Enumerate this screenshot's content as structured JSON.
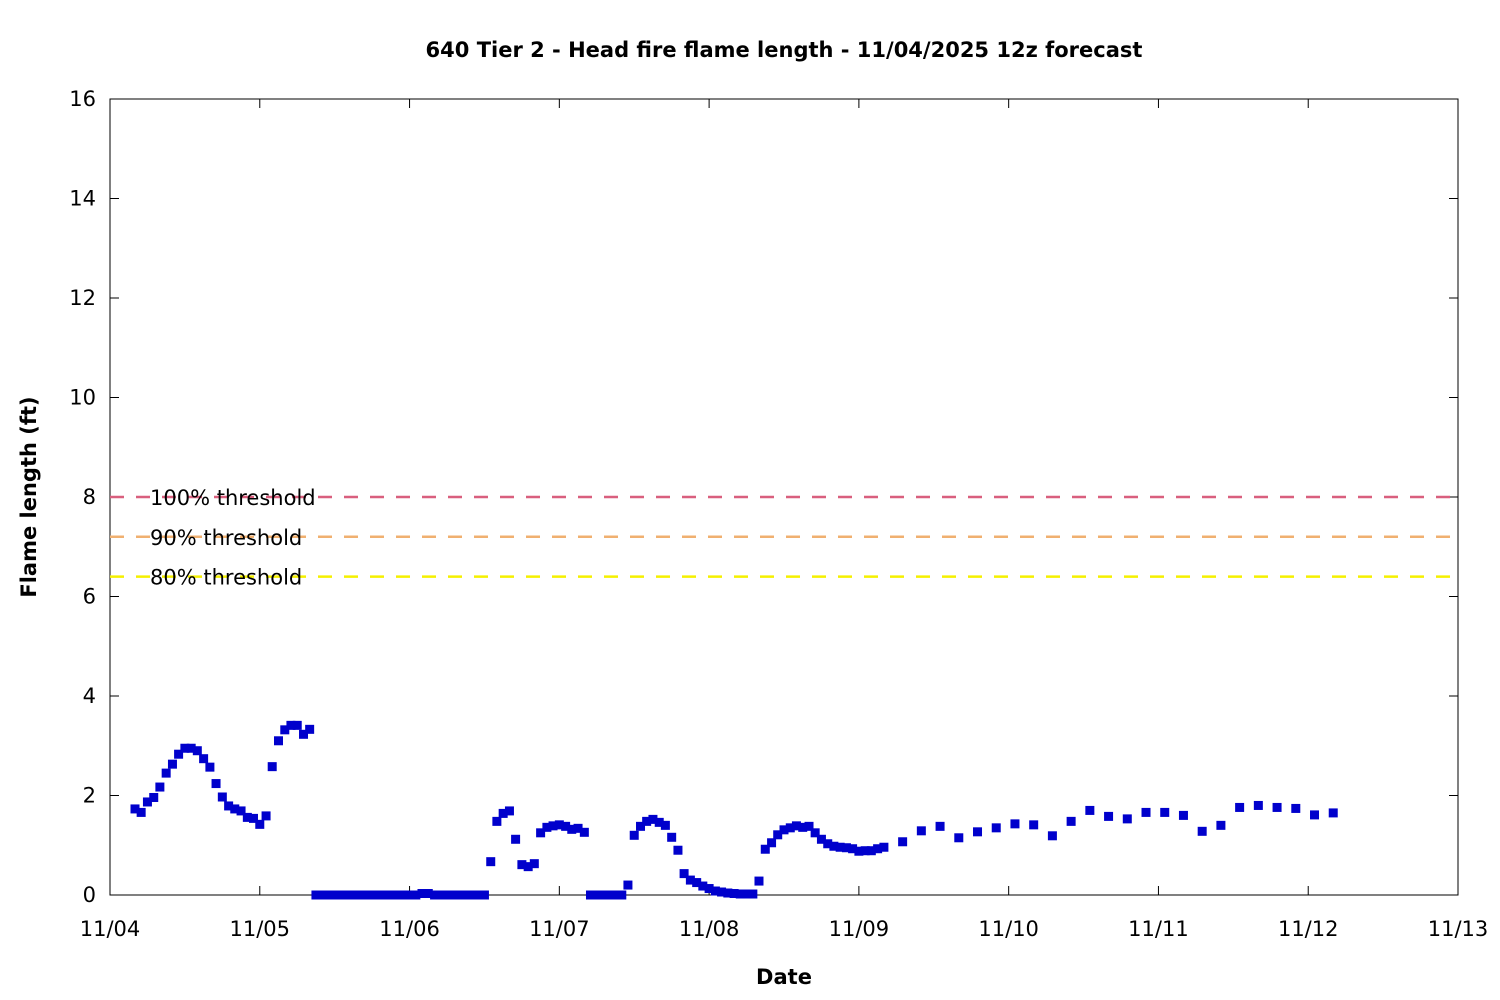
{
  "chart_data": {
    "type": "scatter",
    "title": "640 Tier 2 - Head fire flame length - 11/04/2025 12z forecast",
    "xlabel": "Date",
    "ylabel": "Flame length (ft)",
    "x_ticks": [
      "11/04",
      "11/05",
      "11/06",
      "11/07",
      "11/08",
      "11/09",
      "11/10",
      "11/11",
      "11/12",
      "11/13"
    ],
    "xlim_days": [
      0,
      9
    ],
    "ylim": [
      0,
      16
    ],
    "y_ticks": [
      0,
      2,
      4,
      6,
      8,
      10,
      12,
      14,
      16
    ],
    "grid": false,
    "marker_color": "#0000cc",
    "thresholds": [
      {
        "label": "100% threshold",
        "value": 8.0,
        "color": "#d95f7e"
      },
      {
        "label": "90% threshold",
        "value": 7.2,
        "color": "#f0b070"
      },
      {
        "label": "80% threshold",
        "value": 6.4,
        "color": "#f5f000"
      }
    ],
    "series": [
      {
        "points": [
          [
            0.167,
            1.73
          ],
          [
            0.208,
            1.66
          ],
          [
            0.25,
            1.87
          ],
          [
            0.292,
            1.96
          ],
          [
            0.333,
            2.17
          ],
          [
            0.375,
            2.45
          ],
          [
            0.417,
            2.63
          ],
          [
            0.458,
            2.83
          ],
          [
            0.5,
            2.95
          ],
          [
            0.542,
            2.95
          ],
          [
            0.583,
            2.9
          ],
          [
            0.625,
            2.74
          ],
          [
            0.667,
            2.57
          ],
          [
            0.708,
            2.24
          ],
          [
            0.75,
            1.97
          ],
          [
            0.792,
            1.79
          ],
          [
            0.833,
            1.73
          ],
          [
            0.875,
            1.69
          ],
          [
            0.917,
            1.56
          ],
          [
            0.958,
            1.54
          ],
          [
            1.0,
            1.42
          ],
          [
            1.042,
            1.59
          ],
          [
            1.083,
            2.58
          ],
          [
            1.125,
            3.1
          ],
          [
            1.167,
            3.32
          ],
          [
            1.208,
            3.41
          ],
          [
            1.25,
            3.41
          ],
          [
            1.292,
            3.23
          ],
          [
            1.333,
            3.33
          ],
          [
            1.375,
            0
          ],
          [
            1.417,
            0
          ],
          [
            1.458,
            0
          ],
          [
            1.5,
            0
          ],
          [
            1.542,
            0
          ],
          [
            1.583,
            0
          ],
          [
            1.625,
            0
          ],
          [
            1.667,
            0
          ],
          [
            1.708,
            0
          ],
          [
            1.75,
            0
          ],
          [
            1.792,
            0
          ],
          [
            1.833,
            0
          ],
          [
            1.875,
            0
          ],
          [
            1.917,
            0
          ],
          [
            1.958,
            0
          ],
          [
            2.0,
            0
          ],
          [
            2.042,
            0
          ],
          [
            2.083,
            0.03
          ],
          [
            2.125,
            0.03
          ],
          [
            2.167,
            0
          ],
          [
            2.208,
            0
          ],
          [
            2.25,
            0
          ],
          [
            2.292,
            0
          ],
          [
            2.333,
            0
          ],
          [
            2.375,
            0
          ],
          [
            2.417,
            0
          ],
          [
            2.458,
            0
          ],
          [
            2.5,
            0
          ],
          [
            2.542,
            0.67
          ],
          [
            2.583,
            1.48
          ],
          [
            2.625,
            1.64
          ],
          [
            2.667,
            1.69
          ],
          [
            2.708,
            1.12
          ],
          [
            2.75,
            0.61
          ],
          [
            2.792,
            0.57
          ],
          [
            2.833,
            0.63
          ],
          [
            2.875,
            1.25
          ],
          [
            2.917,
            1.36
          ],
          [
            2.958,
            1.39
          ],
          [
            3.0,
            1.41
          ],
          [
            3.042,
            1.38
          ],
          [
            3.083,
            1.32
          ],
          [
            3.125,
            1.34
          ],
          [
            3.167,
            1.26
          ],
          [
            3.208,
            0
          ],
          [
            3.25,
            0
          ],
          [
            3.292,
            0
          ],
          [
            3.333,
            0
          ],
          [
            3.375,
            0
          ],
          [
            3.417,
            0
          ],
          [
            3.458,
            0.2
          ],
          [
            3.5,
            1.2
          ],
          [
            3.542,
            1.38
          ],
          [
            3.583,
            1.48
          ],
          [
            3.625,
            1.52
          ],
          [
            3.667,
            1.46
          ],
          [
            3.708,
            1.4
          ],
          [
            3.75,
            1.16
          ],
          [
            3.792,
            0.9
          ],
          [
            3.833,
            0.43
          ],
          [
            3.875,
            0.3
          ],
          [
            3.917,
            0.25
          ],
          [
            3.958,
            0.18
          ],
          [
            4.0,
            0.13
          ],
          [
            4.042,
            0.08
          ],
          [
            4.083,
            0.06
          ],
          [
            4.125,
            0.04
          ],
          [
            4.167,
            0.03
          ],
          [
            4.208,
            0.02
          ],
          [
            4.25,
            0.02
          ],
          [
            4.292,
            0.02
          ],
          [
            4.333,
            0.28
          ],
          [
            4.375,
            0.92
          ],
          [
            4.417,
            1.05
          ],
          [
            4.458,
            1.21
          ],
          [
            4.5,
            1.31
          ],
          [
            4.542,
            1.35
          ],
          [
            4.583,
            1.39
          ],
          [
            4.625,
            1.36
          ],
          [
            4.667,
            1.38
          ],
          [
            4.708,
            1.25
          ],
          [
            4.75,
            1.12
          ],
          [
            4.792,
            1.03
          ],
          [
            4.833,
            0.98
          ],
          [
            4.875,
            0.96
          ],
          [
            4.917,
            0.95
          ],
          [
            4.958,
            0.93
          ],
          [
            5.0,
            0.88
          ],
          [
            5.042,
            0.89
          ],
          [
            5.083,
            0.89
          ],
          [
            5.125,
            0.93
          ],
          [
            5.167,
            0.96
          ],
          [
            5.292,
            1.07
          ],
          [
            5.417,
            1.29
          ],
          [
            5.542,
            1.38
          ],
          [
            5.667,
            1.15
          ],
          [
            5.792,
            1.27
          ],
          [
            5.917,
            1.35
          ],
          [
            6.042,
            1.43
          ],
          [
            6.167,
            1.41
          ],
          [
            6.292,
            1.19
          ],
          [
            6.417,
            1.48
          ],
          [
            6.542,
            1.7
          ],
          [
            6.667,
            1.58
          ],
          [
            6.792,
            1.53
          ],
          [
            6.917,
            1.66
          ],
          [
            7.042,
            1.66
          ],
          [
            7.167,
            1.6
          ],
          [
            7.292,
            1.28
          ],
          [
            7.417,
            1.4
          ],
          [
            7.542,
            1.76
          ],
          [
            7.667,
            1.8
          ],
          [
            7.792,
            1.76
          ],
          [
            7.917,
            1.74
          ],
          [
            8.042,
            1.61
          ],
          [
            8.167,
            1.65
          ]
        ]
      }
    ]
  }
}
